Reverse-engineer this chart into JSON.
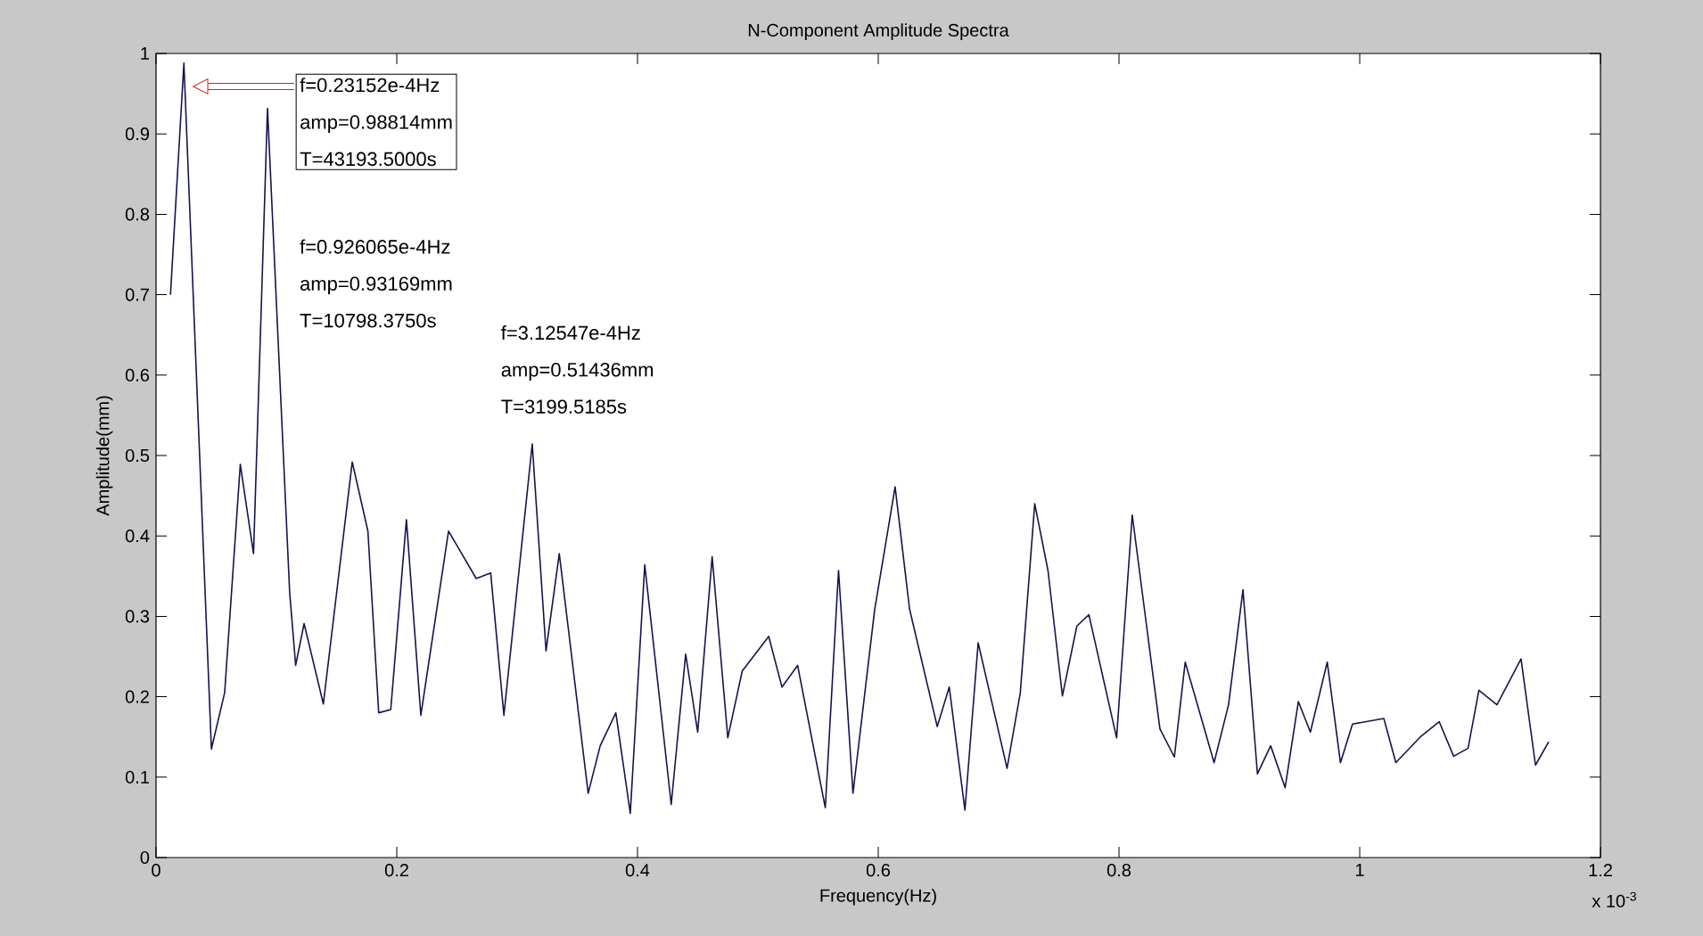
{
  "chart_data": {
    "type": "line",
    "title": "N-Component Amplitude Spectra",
    "xlabel": "Frequency(Hz)",
    "ylabel": "Amplitude(mm)",
    "x": [
      0.012,
      0.023152,
      0.046,
      0.057,
      0.07,
      0.081,
      0.0926065,
      0.111,
      0.116,
      0.123,
      0.139,
      0.163,
      0.176,
      0.185,
      0.195,
      0.208,
      0.22,
      0.243,
      0.266,
      0.278,
      0.289,
      0.312547,
      0.324,
      0.335,
      0.359,
      0.369,
      0.382,
      0.394,
      0.406,
      0.428,
      0.44,
      0.45,
      0.462,
      0.475,
      0.487,
      0.509,
      0.52,
      0.533,
      0.556,
      0.567,
      0.579,
      0.597,
      0.614,
      0.626,
      0.649,
      0.659,
      0.672,
      0.683,
      0.707,
      0.718,
      0.73,
      0.741,
      0.753,
      0.765,
      0.775,
      0.798,
      0.811,
      0.834,
      0.846,
      0.855,
      0.879,
      0.891,
      0.903,
      0.915,
      0.926,
      0.938,
      0.949,
      0.959,
      0.973,
      0.984,
      0.994,
      1.02,
      1.03,
      1.051,
      1.066,
      1.078,
      1.09,
      1.099,
      1.114,
      1.134,
      1.146,
      1.157
    ],
    "values": [
      0.7,
      0.98814,
      0.135,
      0.205,
      0.489,
      0.378,
      0.93169,
      0.33,
      0.239,
      0.291,
      0.191,
      0.492,
      0.406,
      0.18,
      0.184,
      0.42,
      0.177,
      0.406,
      0.347,
      0.354,
      0.177,
      0.51436,
      0.257,
      0.378,
      0.08,
      0.139,
      0.18,
      0.055,
      0.364,
      0.066,
      0.253,
      0.156,
      0.374,
      0.149,
      0.232,
      0.275,
      0.212,
      0.239,
      0.062,
      0.357,
      0.08,
      0.308,
      0.461,
      0.309,
      0.163,
      0.212,
      0.059,
      0.267,
      0.111,
      0.205,
      0.44,
      0.357,
      0.201,
      0.288,
      0.302,
      0.149,
      0.426,
      0.16,
      0.125,
      0.243,
      0.118,
      0.19,
      0.333,
      0.104,
      0.139,
      0.087,
      0.194,
      0.156,
      0.243,
      0.118,
      0.166,
      0.173,
      0.118,
      0.151,
      0.169,
      0.126,
      0.136,
      0.208,
      0.19,
      0.247,
      0.115,
      0.144
    ],
    "color": "#141450",
    "xlim": [
      0,
      1.2
    ],
    "ylim": [
      0,
      1
    ],
    "xticks": [
      0,
      0.2,
      0.4,
      0.6,
      0.8,
      1,
      1.2
    ],
    "yticks": [
      0,
      0.1,
      0.2,
      0.3,
      0.4,
      0.5,
      0.6,
      0.7,
      0.8,
      0.9,
      1
    ],
    "annotations": [
      "f=0.23152e-4Hz",
      "amp=0.98814mm",
      "T=43193.5000s",
      "f=0.926065e-4Hz",
      "amp=0.93169mm",
      "T=10798.3750s",
      "f=3.12547e-4Hz",
      "amp=0.51436mm",
      "T=3199.5185s",
      "x 10$^{-3}$"
    ]
  }
}
